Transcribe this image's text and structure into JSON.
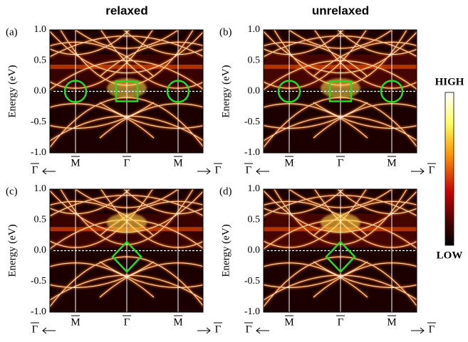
{
  "column_titles": [
    "relaxed",
    "unrelaxed"
  ],
  "panels": [
    {
      "label": "(a)",
      "y_label": "Energy (eV)",
      "ylim": [
        -1,
        1
      ],
      "yticks": [
        {
          "value": 1,
          "label": "1.0"
        },
        {
          "value": 0.5,
          "label": "0.5"
        },
        {
          "value": 0,
          "label": "0.0"
        },
        {
          "value": -0.5,
          "label": "-0.5"
        },
        {
          "value": -1,
          "label": "-1.0"
        }
      ],
      "x_labels": [
        "M",
        "Γ",
        "M"
      ],
      "left_end": "Γ",
      "right_end": "Γ"
    },
    {
      "label": "(b)",
      "y_label": "Energy (eV)",
      "ylim": [
        -1,
        1
      ],
      "yticks": [
        {
          "value": 1,
          "label": "1.0"
        },
        {
          "value": 0.5,
          "label": "0.5"
        },
        {
          "value": 0,
          "label": "0.0"
        },
        {
          "value": -0.5,
          "label": "-0.5"
        },
        {
          "value": -1,
          "label": "-1.0"
        }
      ],
      "x_labels": [
        "M",
        "Γ",
        "M"
      ],
      "left_end": "Γ",
      "right_end": "Γ"
    },
    {
      "label": "(c)",
      "y_label": "Energy (eV)",
      "ylim": [
        -1,
        1
      ],
      "yticks": [
        {
          "value": 1,
          "label": "1.0"
        },
        {
          "value": 0.5,
          "label": "0.5"
        },
        {
          "value": 0,
          "label": "0.0"
        },
        {
          "value": -0.5,
          "label": "-0.5"
        },
        {
          "value": -1,
          "label": "-1.0"
        }
      ],
      "x_labels": [
        "M",
        "Γ",
        "M"
      ],
      "left_end": "Γ",
      "right_end": "Γ"
    },
    {
      "label": "(d)",
      "y_label": "Energy (eV)",
      "ylim": [
        -1,
        1
      ],
      "yticks": [
        {
          "value": 1,
          "label": "1.0"
        },
        {
          "value": 0.5,
          "label": "0.5"
        },
        {
          "value": 0,
          "label": "0.0"
        },
        {
          "value": -0.5,
          "label": "-0.5"
        },
        {
          "value": -1,
          "label": "-1.0"
        }
      ],
      "x_labels": [
        "M",
        "Γ",
        "M"
      ],
      "left_end": "Γ",
      "right_end": "Γ"
    }
  ],
  "colorbar": {
    "high": "HIGH",
    "low": "LOW"
  }
}
